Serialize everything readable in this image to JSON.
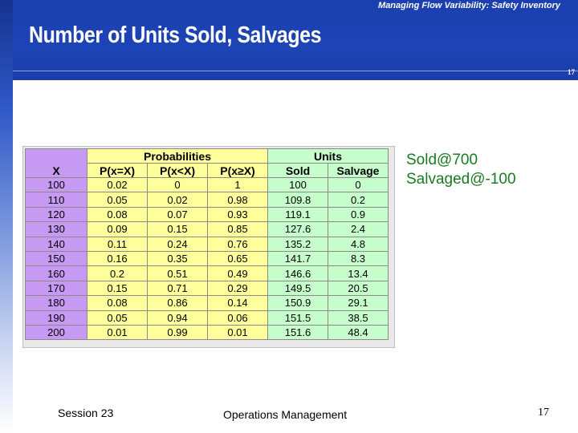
{
  "header": {
    "subtitle": "Managing Flow Variability:  Safety Inventory",
    "title": "Number of Units Sold, Salvages",
    "slide_number": "17"
  },
  "table": {
    "group_headers": {
      "probabilities": "Probabilities",
      "units": "Units"
    },
    "column_headers": {
      "x": "X",
      "p_eq": "P(x=X)",
      "p_lt": "P(x<X)",
      "p_ge": "P(x≥X)",
      "sold": "Sold",
      "salvage": "Salvage"
    },
    "rows": [
      [
        "100",
        "0.02",
        "0",
        "1",
        "100",
        "0"
      ],
      [
        "110",
        "0.05",
        "0.02",
        "0.98",
        "109.8",
        "0.2"
      ],
      [
        "120",
        "0.08",
        "0.07",
        "0.93",
        "119.1",
        "0.9"
      ],
      [
        "130",
        "0.09",
        "0.15",
        "0.85",
        "127.6",
        "2.4"
      ],
      [
        "140",
        "0.11",
        "0.24",
        "0.76",
        "135.2",
        "4.8"
      ],
      [
        "150",
        "0.16",
        "0.35",
        "0.65",
        "141.7",
        "8.3"
      ],
      [
        "160",
        "0.2",
        "0.51",
        "0.49",
        "146.6",
        "13.4"
      ],
      [
        "170",
        "0.15",
        "0.71",
        "0.29",
        "149.5",
        "20.5"
      ],
      [
        "180",
        "0.08",
        "0.86",
        "0.14",
        "150.9",
        "29.1"
      ],
      [
        "190",
        "0.05",
        "0.94",
        "0.06",
        "151.5",
        "38.5"
      ],
      [
        "200",
        "0.01",
        "0.99",
        "0.01",
        "151.6",
        "48.4"
      ]
    ]
  },
  "notes": {
    "line1": "Sold@700",
    "line2": "Salvaged@-100"
  },
  "footer": {
    "session": "Session 23",
    "course": "Operations Management",
    "page": "17"
  },
  "colors": {
    "header_blue": "#1d44b6",
    "x_column": "#c699f2",
    "probabilities": "#ffff9c",
    "units": "#c7ffcc",
    "note_text": "#1a7a22"
  }
}
